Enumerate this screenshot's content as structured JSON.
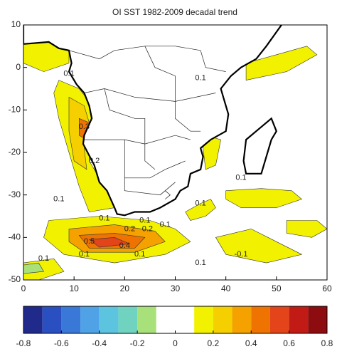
{
  "chart_data": {
    "type": "contour-map",
    "title": "OI SST 1982-2009 decadal trend",
    "xlim": [
      0,
      60
    ],
    "ylim": [
      -50,
      10
    ],
    "xticks": [
      0,
      10,
      20,
      30,
      40,
      50,
      60
    ],
    "yticks": [
      -50,
      -40,
      -30,
      -20,
      -10,
      0,
      10
    ],
    "contour_labels": [
      "0.1",
      "0.1",
      "0.3",
      "0.2",
      "0.1",
      "0.1",
      "0.1",
      "0.1",
      "0.2",
      "0.1",
      "0.1",
      "0.5",
      "0.4",
      "0.2",
      "0.1",
      "0.1",
      "-0.1",
      "0.1",
      "0.1"
    ],
    "colorbar": {
      "bins": [
        -0.8,
        -0.7,
        -0.6,
        -0.5,
        -0.4,
        -0.3,
        -0.2,
        -0.1,
        0,
        0.1,
        0.2,
        0.3,
        0.4,
        0.5,
        0.6,
        0.7,
        0.8
      ],
      "colors": [
        "#1f2a8a",
        "#2a4fc0",
        "#3a78d8",
        "#4fa2e6",
        "#5cc4df",
        "#6fd3c0",
        "#a8e07a",
        "#ffffff",
        "#ffffff",
        "#f2f200",
        "#f5cf00",
        "#f5a200",
        "#ef7300",
        "#e3441a",
        "#c21a14",
        "#8c0c10"
      ],
      "ticks": [
        -0.8,
        -0.6,
        -0.4,
        -0.2,
        0,
        0.2,
        0.4,
        0.6,
        0.8
      ]
    }
  }
}
